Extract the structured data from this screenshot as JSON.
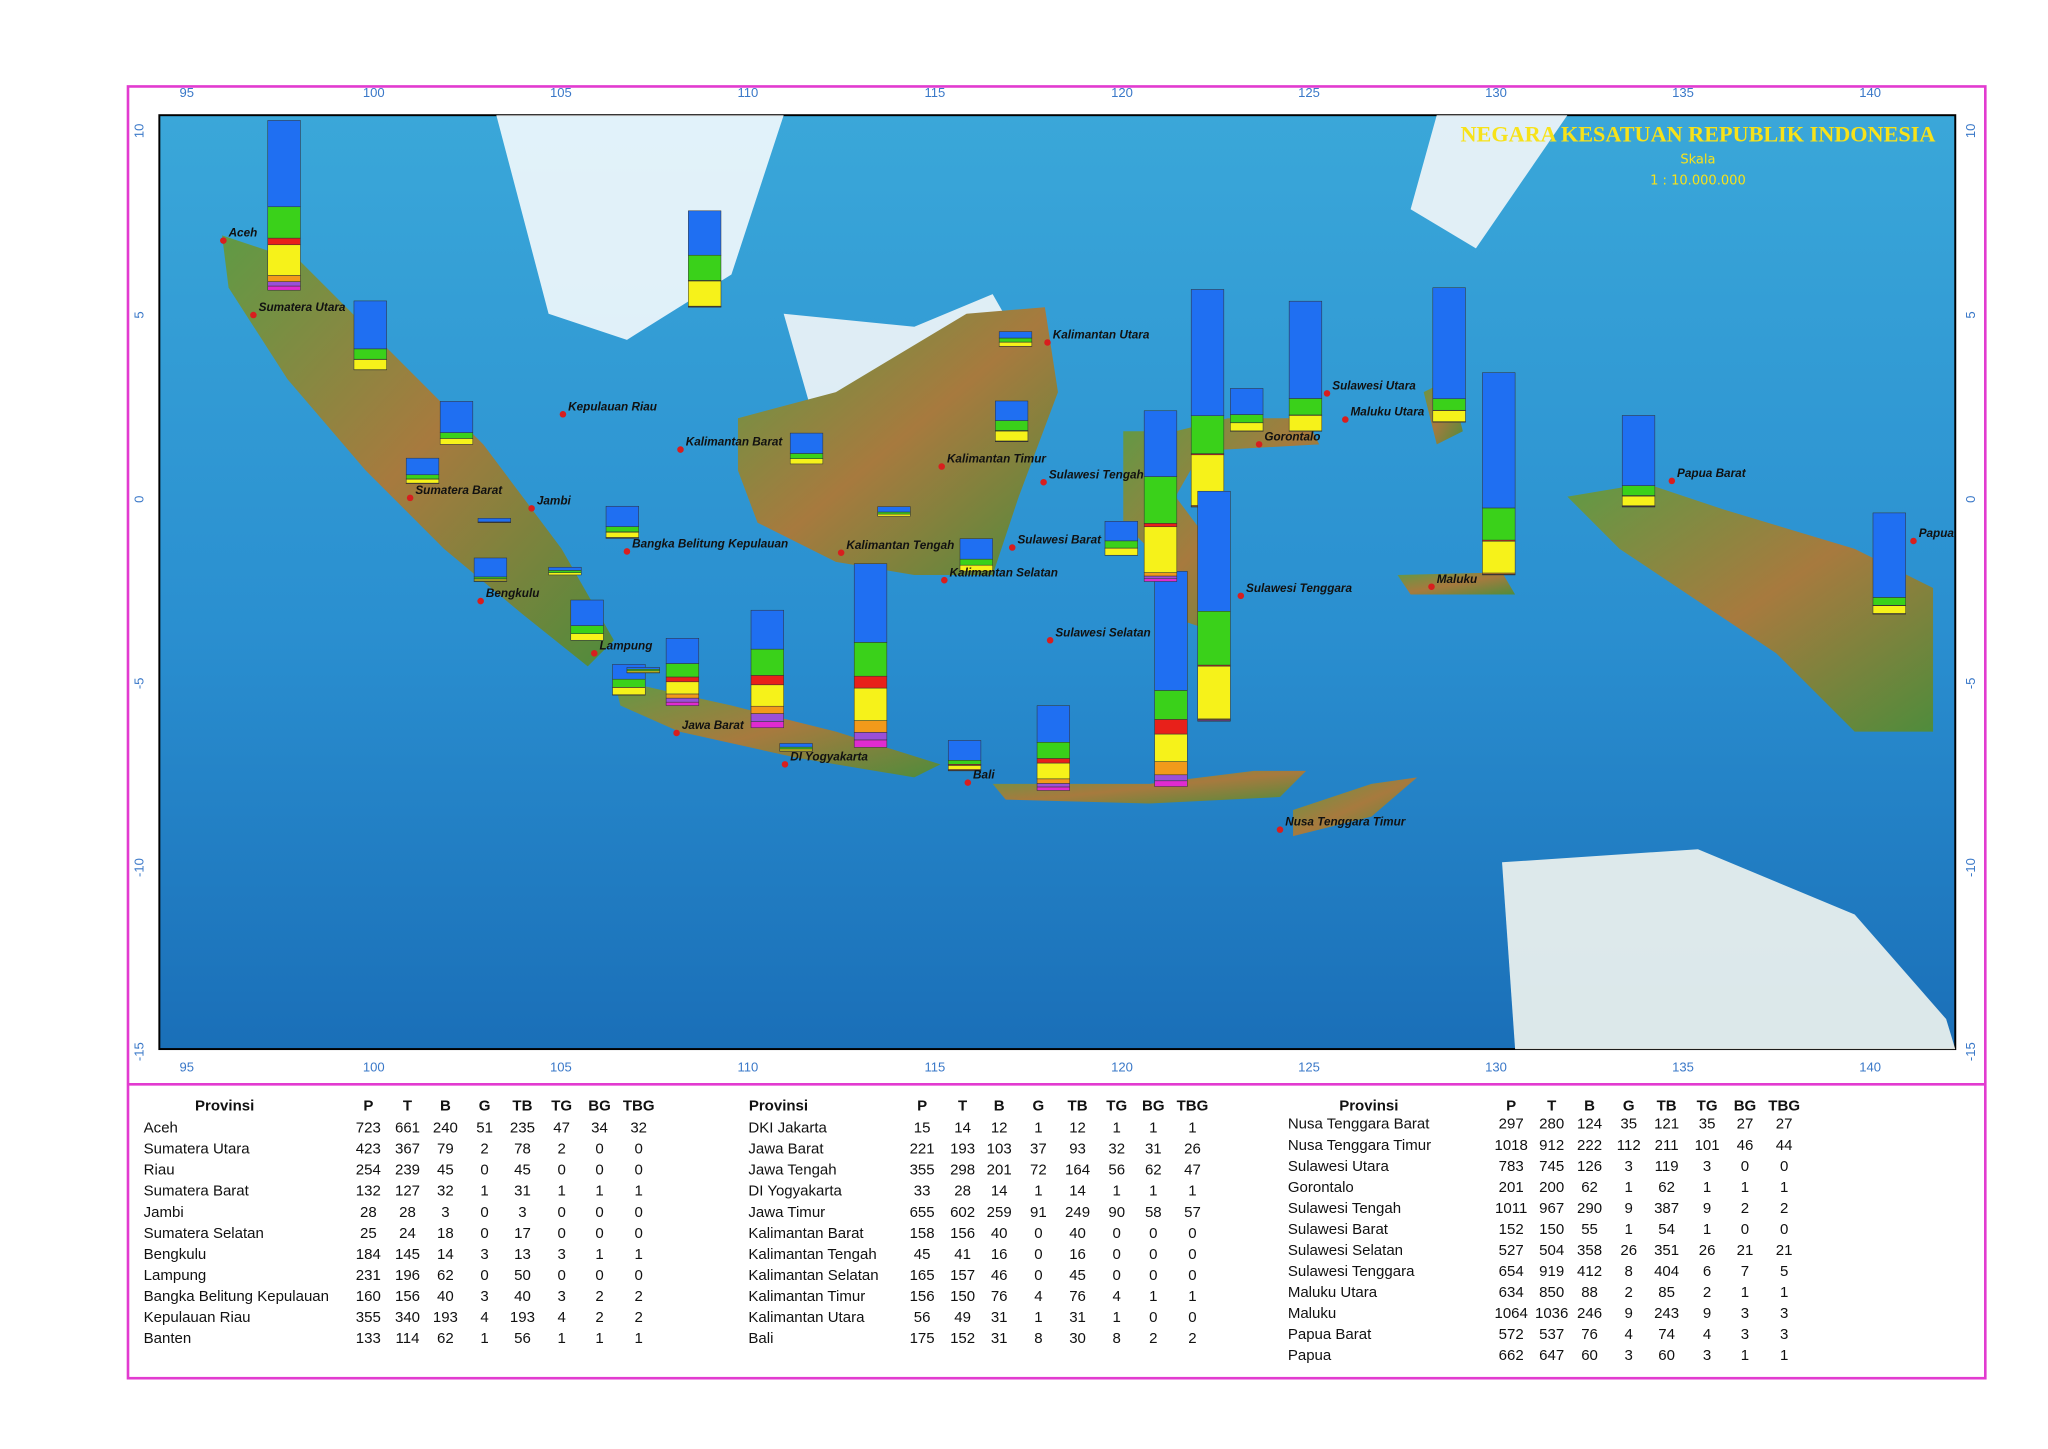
{
  "map": {
    "title": "NEGARA KESATUAN REPUBLIK INDONESIA",
    "scale_label": "Skala",
    "scale": "1 : 10.000.000",
    "lon_labels": [
      "95",
      "100",
      "105",
      "110",
      "115",
      "120",
      "125",
      "130",
      "135",
      "140"
    ],
    "lat_labels": [
      "10",
      "5",
      "0",
      "-5",
      "-10",
      "-15"
    ],
    "labels": [
      "Aceh",
      "Sumatera Utara",
      "Kepulauan Riau",
      "Sumatera Barat",
      "Jambi",
      "Bangka Belitung Kepulauan",
      "Bengkulu",
      "Lampung",
      "Jawa Barat",
      "DI Yogyakarta",
      "Bali",
      "Kalimantan Barat",
      "Kalimantan Tengah",
      "Kalimantan Selatan",
      "Kalimantan Timur",
      "Kalimantan Utara",
      "Sulawesi Tengah",
      "Sulawesi Barat",
      "Sulawesi Selatan",
      "Sulawesi Tenggara",
      "Gorontalo",
      "Sulawesi Utara",
      "Maluku Utara",
      "Maluku",
      "Papua Barat",
      "Papua",
      "Nusa Tenggara Timur"
    ]
  },
  "tables": [
    {
      "header": [
        "Provinsi",
        "P",
        "T",
        "B",
        "G",
        "TB",
        "TG",
        "BG",
        "TBG"
      ],
      "rows": [
        [
          "Aceh",
          723,
          661,
          240,
          51,
          235,
          47,
          34,
          32
        ],
        [
          "Sumatera Utara",
          423,
          367,
          79,
          2,
          78,
          2,
          0,
          0
        ],
        [
          "Riau",
          254,
          239,
          45,
          0,
          45,
          0,
          0,
          0
        ],
        [
          "Sumatera Barat",
          132,
          127,
          32,
          1,
          31,
          1,
          1,
          1
        ],
        [
          "Jambi",
          28,
          28,
          3,
          0,
          3,
          0,
          0,
          0
        ],
        [
          "Sumatera Selatan",
          25,
          24,
          18,
          0,
          17,
          0,
          0,
          0
        ],
        [
          "Bengkulu",
          184,
          145,
          14,
          3,
          13,
          3,
          1,
          1
        ],
        [
          "Lampung",
          231,
          196,
          62,
          0,
          50,
          0,
          0,
          0
        ],
        [
          "Bangka Belitung Kepulauan",
          160,
          156,
          40,
          3,
          40,
          3,
          2,
          2
        ],
        [
          "Kepulauan Riau",
          355,
          340,
          193,
          4,
          193,
          4,
          2,
          2
        ],
        [
          "Banten",
          133,
          114,
          62,
          1,
          56,
          1,
          1,
          1
        ]
      ]
    },
    {
      "header": [
        "Provinsi",
        "P",
        "T",
        "B",
        "G",
        "TB",
        "TG",
        "BG",
        "TBG"
      ],
      "rows": [
        [
          "DKI Jakarta",
          15,
          14,
          12,
          1,
          12,
          1,
          1,
          1
        ],
        [
          "Jawa Barat",
          221,
          193,
          103,
          37,
          93,
          32,
          31,
          26
        ],
        [
          "Jawa Tengah",
          355,
          298,
          201,
          72,
          164,
          56,
          62,
          47
        ],
        [
          "DI Yogyakarta",
          33,
          28,
          14,
          1,
          14,
          1,
          1,
          1
        ],
        [
          "Jawa Timur",
          655,
          602,
          259,
          91,
          249,
          90,
          58,
          57
        ],
        [
          "Kalimantan Barat",
          158,
          156,
          40,
          0,
          40,
          0,
          0,
          0
        ],
        [
          "Kalimantan Tengah",
          45,
          41,
          16,
          0,
          16,
          0,
          0,
          0
        ],
        [
          "Kalimantan Selatan",
          165,
          157,
          46,
          0,
          45,
          0,
          0,
          0
        ],
        [
          "Kalimantan Timur",
          156,
          150,
          76,
          4,
          76,
          4,
          1,
          1
        ],
        [
          "Kalimantan Utara",
          56,
          49,
          31,
          1,
          31,
          1,
          0,
          0
        ],
        [
          "Bali",
          175,
          152,
          31,
          8,
          30,
          8,
          2,
          2
        ]
      ]
    },
    {
      "header": [
        "Provinsi",
        "P",
        "T",
        "B",
        "G",
        "TB",
        "TG",
        "BG",
        "TBG"
      ],
      "rows": [
        [
          "Nusa Tenggara Barat",
          297,
          280,
          124,
          35,
          121,
          35,
          27,
          27
        ],
        [
          "Nusa Tenggara Timur",
          1018,
          912,
          222,
          112,
          211,
          101,
          46,
          44
        ],
        [
          "Sulawesi Utara",
          783,
          745,
          126,
          3,
          119,
          3,
          0,
          0
        ],
        [
          "Gorontalo",
          201,
          200,
          62,
          1,
          62,
          1,
          1,
          1
        ],
        [
          "Sulawesi Tengah",
          1011,
          967,
          290,
          9,
          387,
          9,
          2,
          2
        ],
        [
          "Sulawesi Barat",
          152,
          150,
          55,
          1,
          54,
          1,
          0,
          0
        ],
        [
          "Sulawesi Selatan",
          527,
          504,
          358,
          26,
          351,
          26,
          21,
          21
        ],
        [
          "Sulawesi Tenggara",
          654,
          919,
          412,
          8,
          404,
          6,
          7,
          5
        ],
        [
          "Maluku Utara",
          634,
          850,
          88,
          2,
          85,
          2,
          1,
          1
        ],
        [
          "Maluku",
          1064,
          1036,
          246,
          9,
          243,
          9,
          3,
          3
        ],
        [
          "Papua Barat",
          572,
          537,
          76,
          4,
          74,
          4,
          3,
          3
        ],
        [
          "Papua",
          662,
          647,
          60,
          3,
          60,
          3,
          1,
          1
        ]
      ]
    }
  ]
}
